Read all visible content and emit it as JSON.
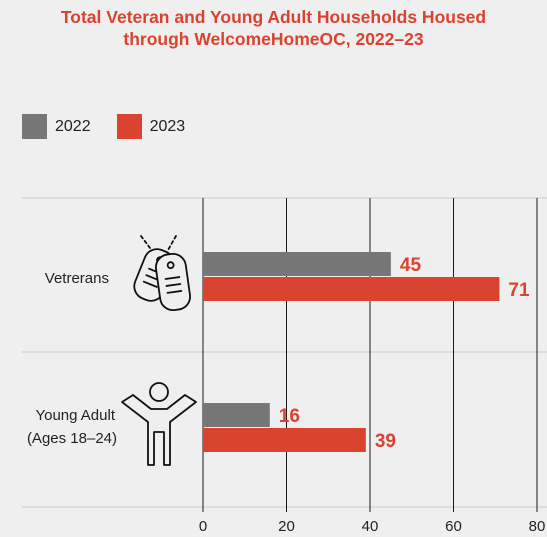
{
  "chart_data": {
    "type": "bar",
    "orientation": "horizontal",
    "title_lines": [
      "Total Veteran and Young Adult Households Housed",
      "through WelcomeHomeOC, 2022–23"
    ],
    "categories": [
      {
        "lines": [
          "Vetrerans"
        ],
        "icon": "dog-tags-icon"
      },
      {
        "lines": [
          "Young Adult",
          "(Ages 18–24)"
        ],
        "icon": "person-icon"
      }
    ],
    "series": [
      {
        "name": "2022",
        "color": "#777777",
        "values": [
          45,
          16
        ]
      },
      {
        "name": "2023",
        "color": "#d9432f",
        "values": [
          71,
          39
        ]
      }
    ],
    "xlim": [
      0,
      80
    ],
    "xticks": [
      "0",
      "20",
      "40",
      "60",
      "80"
    ],
    "legend_position": "top-left",
    "grid": true
  }
}
